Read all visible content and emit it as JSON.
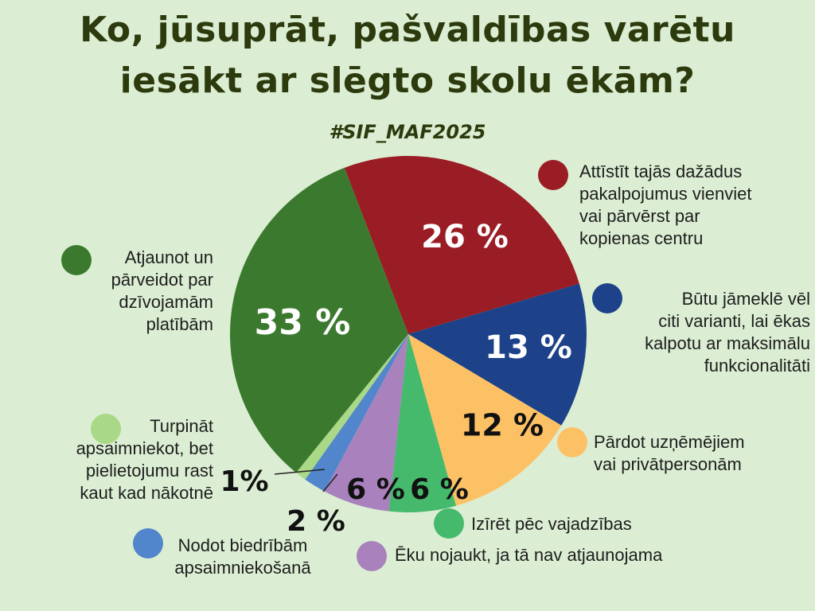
{
  "title": {
    "line1": "Ko, jūsuprāt, pašvaldības varētu",
    "line2": "iesākt ar slēgto skolu ēkām?"
  },
  "hashtag": "#SIF_MAF2025",
  "chart_data": {
    "type": "pie",
    "slices": [
      {
        "label": "Attīstīt tajās dažādus pakalpojumus vienviet vai pārvērst par kopienas centru",
        "value": 26,
        "value_label": "26 %",
        "color": "#9a1c24"
      },
      {
        "label": "Būtu jāmeklē vēl citi varianti, lai ēkas kalpotu ar maksimālu funkcionalitāti",
        "value": 13,
        "value_label": "13 %",
        "color": "#1d4289"
      },
      {
        "label": "Pārdot uzņēmējiem vai privātpersonām",
        "value": 12,
        "value_label": "12 %",
        "color": "#fdc165"
      },
      {
        "label": "Izīrēt pēc vajadzības",
        "value": 6,
        "value_label": "6 %",
        "color": "#45b96c"
      },
      {
        "label": "Ēku nojaukt, ja tā nav atjaunojama",
        "value": 6,
        "value_label": "6 %",
        "color": "#a881bd"
      },
      {
        "label": "Nodot biedrībām apsaimniekošanā",
        "value": 2,
        "value_label": "2 %",
        "color": "#5186cc"
      },
      {
        "label": "Turpināt apsaimniekot, bet pielietojumu rast kaut kad nākotnē",
        "value": 1,
        "value_label": "1%",
        "color": "#a9d886"
      },
      {
        "label": "Atjaunot un pārveidot par dzīvojamām platībām",
        "value": 33,
        "value_label": "33 %",
        "color": "#3b7a2e"
      }
    ]
  },
  "legend": {
    "l0": [
      "Attīstīt tajās dažādus",
      "pakalpojumus vienviet",
      "vai pārvērst par",
      "kopienas centru"
    ],
    "l1": [
      "Būtu jāmeklē vēl",
      "citi varianti, lai ēkas",
      "kalpotu ar maksimālu",
      "funkcionalitāti"
    ],
    "l2": [
      "Pārdot uzņēmējiem",
      "vai privātpersonām"
    ],
    "l3": [
      "Izīrēt pēc vajadzības"
    ],
    "l4": [
      "Ēku nojaukt, ja tā nav atjaunojama"
    ],
    "l5": [
      "Nodot biedrībām",
      "apsaimniekošanā"
    ],
    "l6": [
      "Turpināt",
      "apsaimniekot, bet",
      "pielietojumu rast",
      "kaut kad nākotnē"
    ],
    "l7": [
      "Atjaunot un",
      "pārveidot par",
      "dzīvojamām",
      "platībām"
    ]
  }
}
